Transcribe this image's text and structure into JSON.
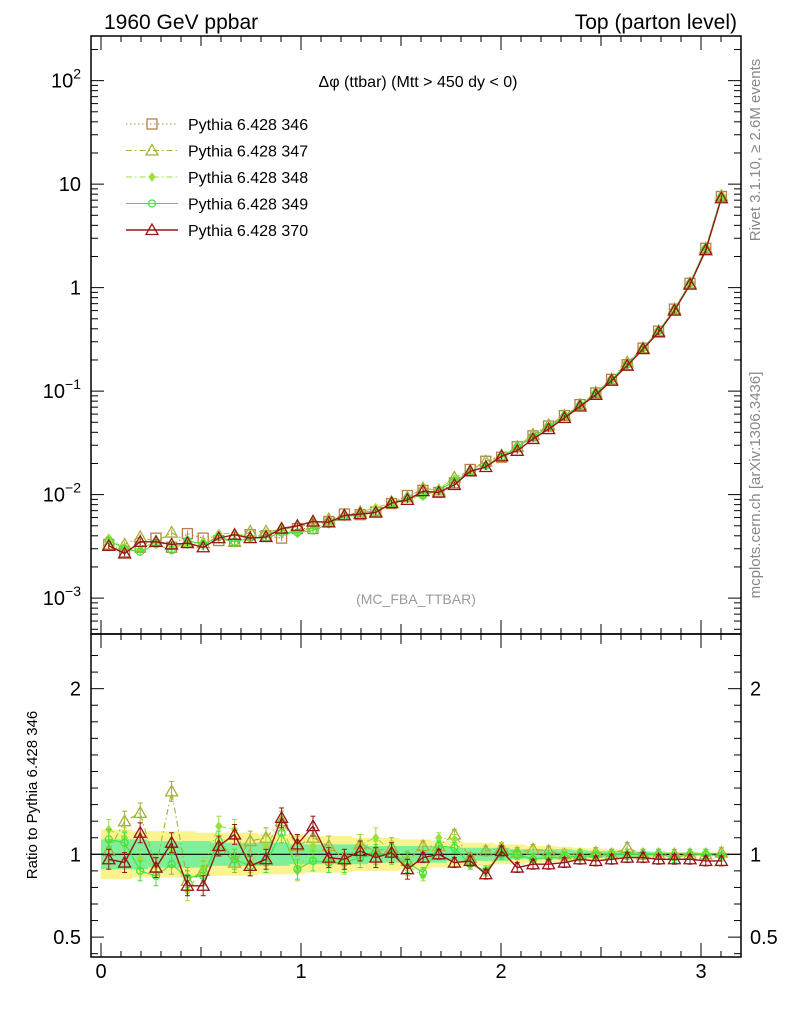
{
  "header": {
    "left": "1960 GeV ppbar",
    "right": "Top (parton level)"
  },
  "plot_title": "Δφ (ttbar) (Mtt > 450 dy < 0)",
  "watermark": "(MC_FBA_TTBAR)",
  "side_labels": {
    "rivet": "Rivet 3.1.10, ≥ 2.6M events",
    "source": "mcplots.cern.ch [arXiv:1306.3436]"
  },
  "ratio_ylabel": "Ratio to Pythia 6.428 346",
  "chart_data": [
    {
      "type": "line",
      "panel": "main",
      "yscale": "log",
      "xlim": [
        -0.05,
        3.2
      ],
      "ylim": [
        0.00045,
        270
      ],
      "yticks": [
        {
          "v": 0.001,
          "base": "10",
          "exp": "−3"
        },
        {
          "v": 0.01,
          "base": "10",
          "exp": "−2"
        },
        {
          "v": 0.1,
          "base": "10",
          "exp": "−1"
        },
        {
          "v": 1,
          "base": "1",
          "exp": ""
        },
        {
          "v": 10,
          "base": "10",
          "exp": ""
        },
        {
          "v": 100,
          "base": "10",
          "exp": "2"
        }
      ],
      "x": [
        0.039,
        0.118,
        0.196,
        0.275,
        0.353,
        0.432,
        0.511,
        0.589,
        0.668,
        0.746,
        0.825,
        0.903,
        0.982,
        1.06,
        1.139,
        1.217,
        1.296,
        1.374,
        1.453,
        1.532,
        1.61,
        1.689,
        1.767,
        1.846,
        1.924,
        2.003,
        2.081,
        2.16,
        2.238,
        2.317,
        2.395,
        2.474,
        2.553,
        2.631,
        2.71,
        2.788,
        2.867,
        2.945,
        3.024,
        3.102
      ],
      "series": [
        {
          "name": "Pythia 6.428 346",
          "color": "#b5814a",
          "marker": "square",
          "values": [
            0.0033,
            0.0028,
            0.0031,
            0.0038,
            0.0031,
            0.0042,
            0.0038,
            0.0036,
            0.0036,
            0.0041,
            0.004,
            0.0038,
            0.0047,
            0.0047,
            0.0055,
            0.0065,
            0.0064,
            0.0068,
            0.0082,
            0.0098,
            0.011,
            0.0105,
            0.013,
            0.0175,
            0.021,
            0.023,
            0.029,
            0.037,
            0.046,
            0.058,
            0.074,
            0.096,
            0.13,
            0.18,
            0.26,
            0.38,
            0.62,
            1.1,
            2.4,
            7.6
          ]
        },
        {
          "name": "Pythia 6.428 347",
          "color": "#a6b035",
          "marker": "triangle-up",
          "values": [
            0.0033,
            0.0033,
            0.0039,
            0.0035,
            0.0043,
            0.0035,
            0.0034,
            0.0038,
            0.0035,
            0.0044,
            0.0044,
            0.0046,
            0.0049,
            0.0052,
            0.0058,
            0.0063,
            0.0068,
            0.0069,
            0.0085,
            0.0094,
            0.0115,
            0.011,
            0.0146,
            0.017,
            0.021,
            0.024,
            0.029,
            0.038,
            0.047,
            0.058,
            0.074,
            0.097,
            0.13,
            0.19,
            0.26,
            0.38,
            0.62,
            1.1,
            2.4,
            7.7
          ]
        },
        {
          "name": "Pythia 6.428 348",
          "color": "#9be13a",
          "marker": "diamond",
          "values": [
            0.0038,
            0.0031,
            0.003,
            0.0035,
            0.0032,
            0.0033,
            0.0035,
            0.0042,
            0.0042,
            0.0039,
            0.0042,
            0.0046,
            0.0042,
            0.0049,
            0.0052,
            0.0061,
            0.0068,
            0.0075,
            0.0083,
            0.0091,
            0.0096,
            0.0115,
            0.0142,
            0.0165,
            0.019,
            0.024,
            0.029,
            0.036,
            0.045,
            0.058,
            0.073,
            0.096,
            0.13,
            0.18,
            0.26,
            0.38,
            0.61,
            1.1,
            2.4,
            7.5
          ]
        },
        {
          "name": "Pythia 6.428 349",
          "color": "#44e23a",
          "marker": "circle",
          "values": [
            0.0036,
            0.003,
            0.0028,
            0.0033,
            0.0029,
            0.0036,
            0.0033,
            0.0039,
            0.0035,
            0.0038,
            0.0038,
            0.0043,
            0.0043,
            0.0045,
            0.0052,
            0.0062,
            0.0063,
            0.0068,
            0.0082,
            0.0093,
            0.0098,
            0.011,
            0.0135,
            0.0165,
            0.019,
            0.023,
            0.029,
            0.036,
            0.045,
            0.057,
            0.073,
            0.095,
            0.13,
            0.18,
            0.26,
            0.38,
            0.61,
            1.1,
            2.4,
            7.5
          ]
        },
        {
          "name": "Pythia 6.428 370",
          "color": "#981518",
          "marker": "triangle-up",
          "values": [
            0.0032,
            0.0027,
            0.0035,
            0.0035,
            0.0033,
            0.0034,
            0.0031,
            0.0038,
            0.0041,
            0.0038,
            0.0039,
            0.0047,
            0.005,
            0.0055,
            0.0054,
            0.0063,
            0.0065,
            0.0067,
            0.0083,
            0.0089,
            0.0108,
            0.0105,
            0.0124,
            0.0168,
            0.0185,
            0.0235,
            0.0265,
            0.0345,
            0.043,
            0.055,
            0.071,
            0.092,
            0.126,
            0.176,
            0.255,
            0.37,
            0.6,
            1.07,
            2.3,
            7.3
          ]
        }
      ]
    },
    {
      "type": "line",
      "panel": "ratio",
      "xlim": [
        -0.05,
        3.2
      ],
      "ylim": [
        0.38,
        2.33
      ],
      "xticks": [
        0,
        1,
        2,
        3
      ],
      "yticks": [
        0.5,
        1,
        2
      ],
      "reference": 1,
      "band_yellow_halfwidth": [
        0.15,
        0.15,
        0.14,
        0.14,
        0.14,
        0.14,
        0.13,
        0.13,
        0.13,
        0.13,
        0.12,
        0.12,
        0.12,
        0.11,
        0.11,
        0.11,
        0.1,
        0.1,
        0.1,
        0.09,
        0.09,
        0.08,
        0.08,
        0.07,
        0.07,
        0.06,
        0.06,
        0.05,
        0.05,
        0.045,
        0.04,
        0.035,
        0.03,
        0.025,
        0.02,
        0.02,
        0.015,
        0.015,
        0.012,
        0.01
      ],
      "band_green_halfwidth": [
        0.09,
        0.09,
        0.09,
        0.08,
        0.08,
        0.08,
        0.08,
        0.07,
        0.07,
        0.07,
        0.07,
        0.07,
        0.06,
        0.06,
        0.06,
        0.06,
        0.06,
        0.05,
        0.05,
        0.05,
        0.05,
        0.05,
        0.04,
        0.04,
        0.04,
        0.04,
        0.03,
        0.03,
        0.03,
        0.03,
        0.025,
        0.02,
        0.02,
        0.018,
        0.015,
        0.012,
        0.01,
        0.01,
        0.008,
        0.006
      ],
      "series": [
        {
          "name": "Pythia 6.428 347",
          "color": "#a6b035",
          "marker": "triangle-up",
          "values": [
            1.02,
            1.2,
            1.25,
            0.92,
            1.38,
            0.84,
            0.9,
            1.05,
            0.95,
            1.08,
            1.1,
            1.2,
            1.05,
            1.1,
            1.05,
            0.97,
            1.06,
            1.02,
            1.04,
            0.96,
            1.05,
            1.05,
            1.12,
            0.98,
            1.02,
            1.04,
            1.01,
            1.03,
            1.02,
            1.0,
            1.0,
            1.01,
            1.0,
            1.04,
            1.0,
            1.0,
            1.0,
            1.0,
            1.0,
            1.01
          ]
        },
        {
          "name": "Pythia 6.428 348",
          "color": "#9be13a",
          "marker": "diamond",
          "values": [
            1.15,
            1.1,
            0.97,
            0.93,
            1.03,
            0.78,
            0.92,
            1.17,
            1.15,
            0.95,
            1.05,
            1.2,
            0.9,
            1.05,
            0.95,
            0.94,
            1.06,
            1.1,
            1.02,
            0.93,
            0.87,
            1.1,
            1.09,
            0.94,
            0.9,
            1.04,
            1.0,
            0.97,
            0.98,
            1.0,
            0.99,
            1.0,
            1.0,
            1.0,
            1.0,
            1.0,
            0.98,
            1.0,
            1.0,
            0.99
          ]
        },
        {
          "name": "Pythia 6.428 349",
          "color": "#44e23a",
          "marker": "circle",
          "values": [
            1.09,
            1.07,
            0.9,
            0.87,
            0.94,
            0.86,
            0.87,
            1.08,
            0.97,
            0.93,
            0.95,
            1.13,
            0.91,
            0.96,
            0.95,
            0.95,
            0.98,
            1.0,
            1.0,
            0.95,
            0.89,
            1.05,
            1.04,
            0.94,
            0.9,
            1.0,
            1.0,
            0.97,
            0.98,
            0.98,
            0.99,
            0.99,
            1.0,
            1.0,
            1.0,
            1.0,
            0.98,
            1.0,
            1.0,
            0.99
          ]
        },
        {
          "name": "Pythia 6.428 370",
          "color": "#981518",
          "marker": "triangle-up",
          "values": [
            0.97,
            0.95,
            1.13,
            0.92,
            1.07,
            0.81,
            0.81,
            1.05,
            1.12,
            0.93,
            0.97,
            1.22,
            1.06,
            1.17,
            0.98,
            0.97,
            1.02,
            0.98,
            1.01,
            0.91,
            0.98,
            1.0,
            0.95,
            0.96,
            0.88,
            1.02,
            0.92,
            0.94,
            0.94,
            0.95,
            0.97,
            0.96,
            0.97,
            0.98,
            0.98,
            0.97,
            0.97,
            0.97,
            0.96,
            0.96
          ]
        }
      ]
    }
  ]
}
